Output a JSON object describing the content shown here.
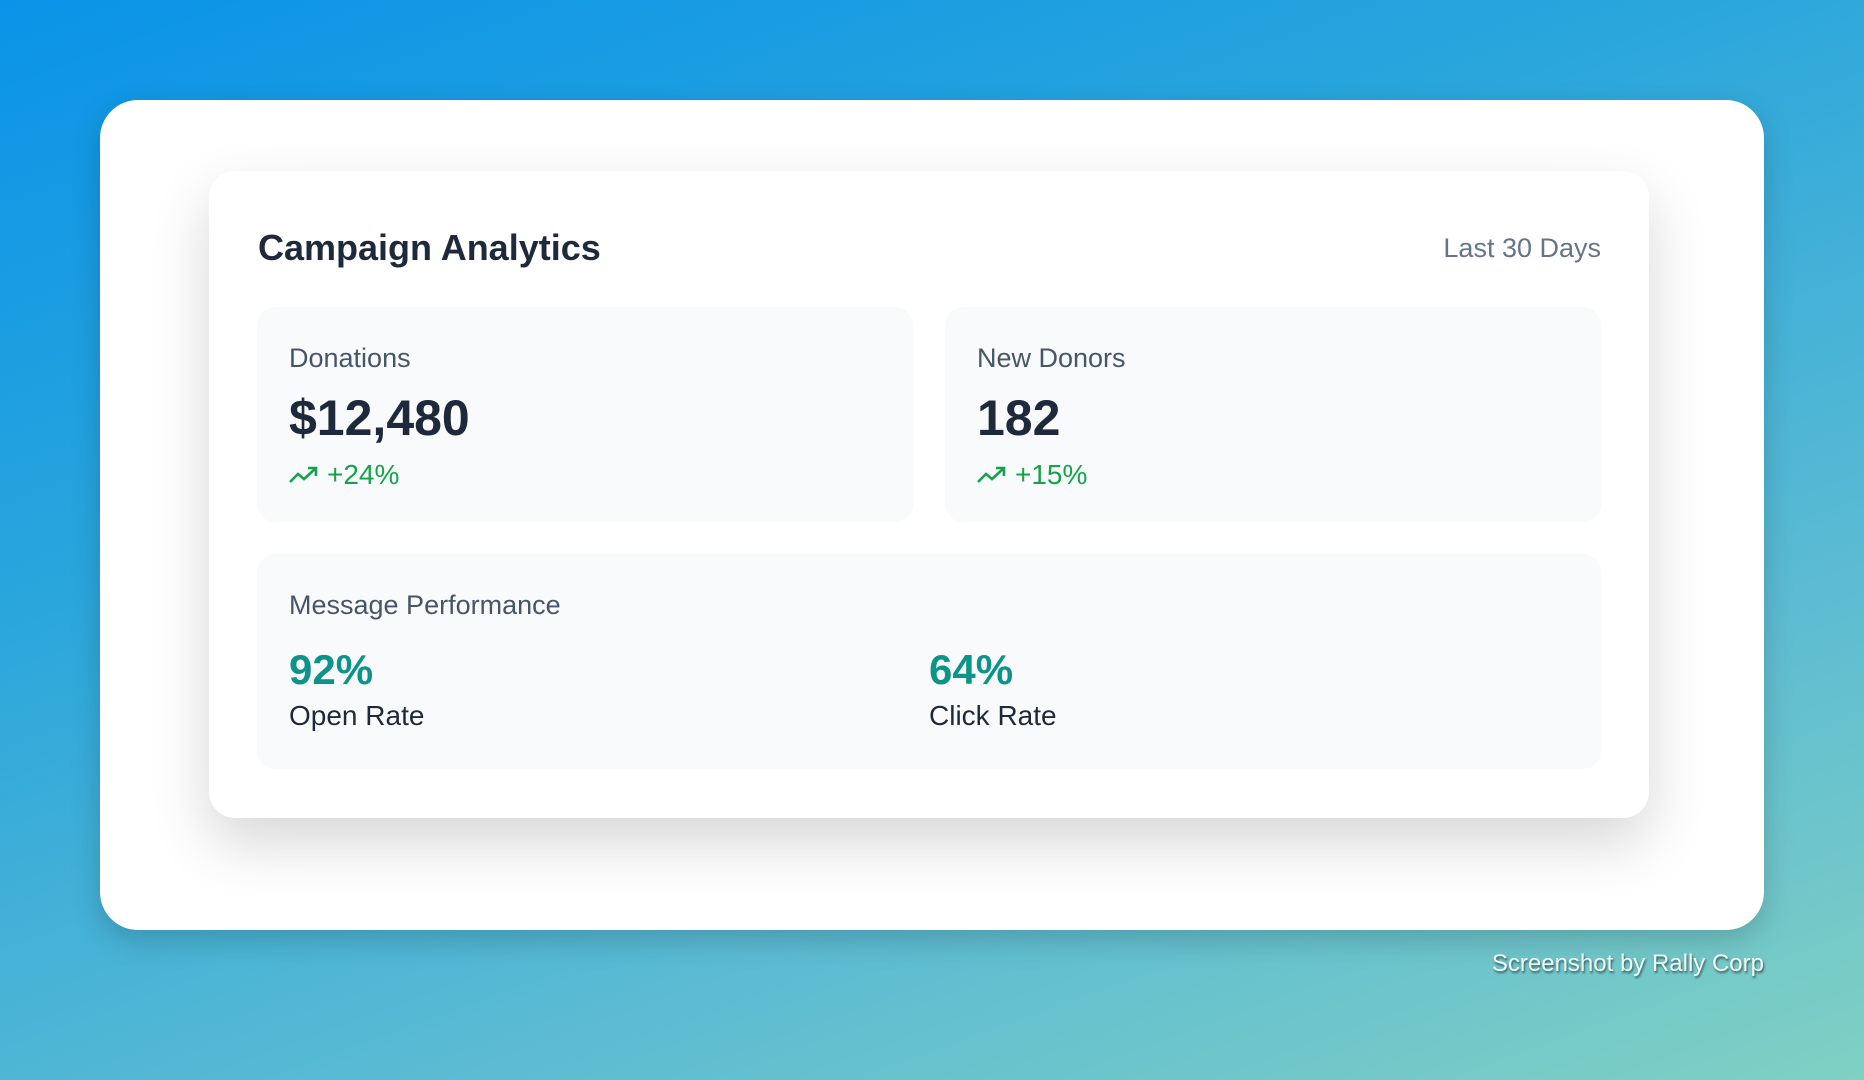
{
  "header": {
    "title": "Campaign Analytics",
    "range": "Last 30 Days"
  },
  "stats": [
    {
      "label": "Donations",
      "value": "$12,480",
      "change": "+24%",
      "trend_icon": "trending-up-icon"
    },
    {
      "label": "New Donors",
      "value": "182",
      "change": "+15%",
      "trend_icon": "trending-up-icon"
    }
  ],
  "performance": {
    "title": "Message Performance",
    "metrics": [
      {
        "value": "92%",
        "label": "Open Rate"
      },
      {
        "value": "64%",
        "label": "Click Rate"
      }
    ]
  },
  "footer": "Screenshot by Rally Corp",
  "colors": {
    "positive": "#16a34a",
    "accent": "#0d9488",
    "text": "#1e293b"
  }
}
